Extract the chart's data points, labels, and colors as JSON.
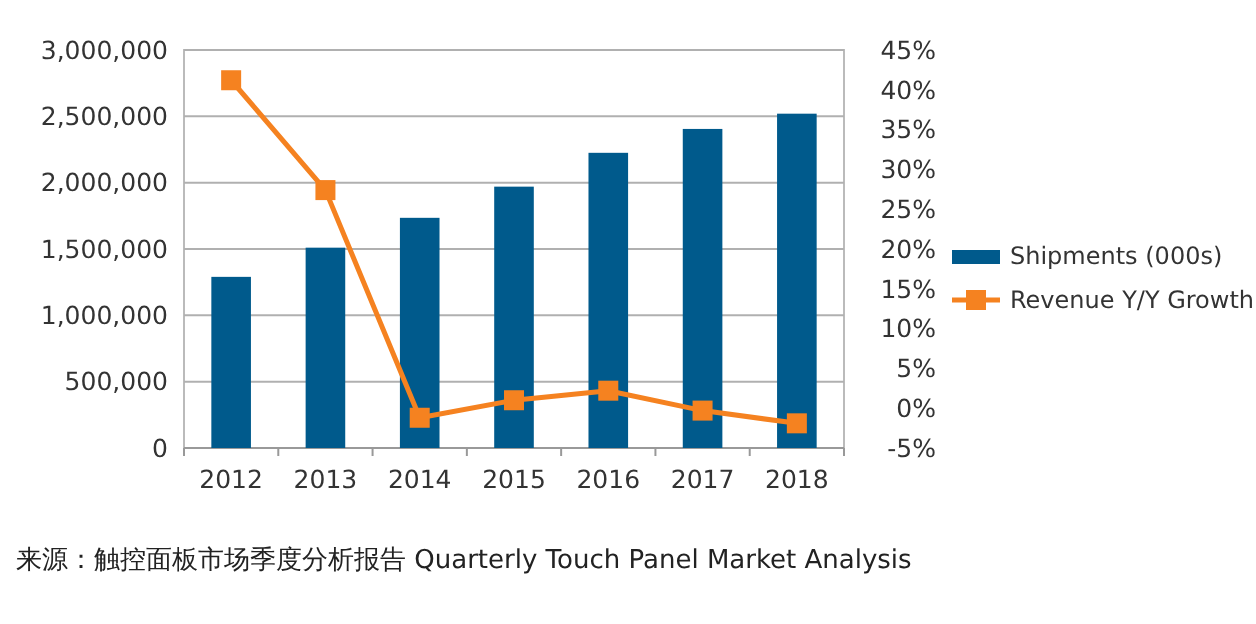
{
  "chart_data": {
    "type": "bar",
    "categories": [
      "2012",
      "2013",
      "2014",
      "2015",
      "2016",
      "2017",
      "2018"
    ],
    "series": [
      {
        "name": "Shipments (000s)",
        "color": "#005a8c",
        "values": [
          1290000,
          1510000,
          1735000,
          1970000,
          2225000,
          2405000,
          2520000
        ]
      },
      {
        "name": "Revenue Y/Y Growth",
        "type": "line",
        "axis": "y2",
        "color": "#f58220",
        "marker": "square",
        "values": [
          41.2,
          27.4,
          -1.2,
          1.0,
          2.2,
          -0.3,
          -1.9
        ]
      }
    ],
    "ylim": [
      0,
      3000000
    ],
    "yticks": [
      0,
      {
        "value": 500000,
        "label": "500,000"
      },
      {
        "value": 1000000,
        "label": "1,000,000"
      },
      {
        "value": 1500000,
        "label": "1,500,000"
      },
      {
        "value": 2000000,
        "label": "2,000,000"
      },
      {
        "value": 2500000,
        "label": "2,500,000"
      },
      {
        "value": 3000000,
        "label": "3,000,000"
      }
    ],
    "y2lim": [
      -5,
      45
    ],
    "y2ticks": [
      {
        "value": -5,
        "label": "-5%"
      },
      {
        "value": 0,
        "label": "0%"
      },
      {
        "value": 5,
        "label": "5%"
      },
      {
        "value": 10,
        "label": "10%"
      },
      {
        "value": 15,
        "label": "15%"
      },
      {
        "value": 20,
        "label": "20%"
      },
      {
        "value": 25,
        "label": "25%"
      },
      {
        "value": 30,
        "label": "30%"
      },
      {
        "value": 35,
        "label": "35%"
      },
      {
        "value": 40,
        "label": "40%"
      },
      {
        "value": 45,
        "label": "45%"
      }
    ],
    "grid": "y",
    "legend": "right",
    "annotations": [
      "来源：触控面板市场季度分析报告 Quarterly Touch Panel Market Analysis"
    ]
  }
}
